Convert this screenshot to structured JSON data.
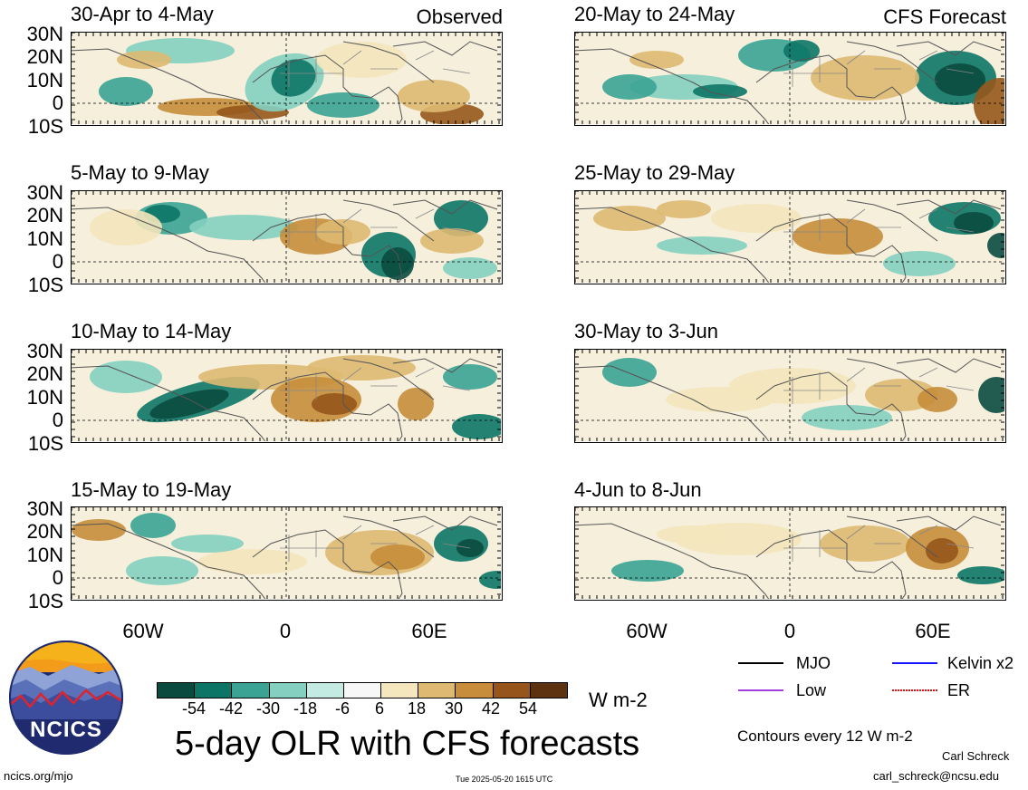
{
  "observed_label": "Observed",
  "forecast_label": "CFS Forecast",
  "latitude_labels": [
    "30N",
    "20N",
    "10N",
    "0",
    "10S"
  ],
  "longitude_labels": [
    "60W",
    "0",
    "60E"
  ],
  "panels_left": [
    {
      "title": "30-Apr to 4-May"
    },
    {
      "title": "5-May to 9-May"
    },
    {
      "title": "10-May to 14-May"
    },
    {
      "title": "15-May to 19-May"
    }
  ],
  "panels_right": [
    {
      "title": "20-May to 24-May"
    },
    {
      "title": "25-May to 29-May"
    },
    {
      "title": "30-May to 3-Jun"
    },
    {
      "title": "4-Jun to 8-Jun"
    }
  ],
  "colorbar": {
    "colors": [
      "#0b4a3f",
      "#0d7566",
      "#3ba393",
      "#84cfbf",
      "#c4ebe1",
      "#f7f7f7",
      "#f4e6bd",
      "#deb971",
      "#c78d3a",
      "#96561b",
      "#5c3210"
    ],
    "labels": [
      "-54",
      "-42",
      "-30",
      "-18",
      "-6",
      "6",
      "18",
      "30",
      "42",
      "54"
    ],
    "unit": "W m-2"
  },
  "legend": {
    "items": [
      {
        "label": "MJO",
        "color": "#000000"
      },
      {
        "label": "Kelvin x2",
        "color": "#1414ff"
      },
      {
        "label": "Low",
        "color": "#a040e0"
      },
      {
        "label": "ER",
        "color": "#e01010"
      }
    ],
    "contour_note": "Contours every 12 W m-2"
  },
  "main_title": "5-day OLR with CFS forecasts",
  "logo_text": "NCICS",
  "author": "Carl Schreck",
  "email": "carl_schreck@ncsu.edu",
  "url": "ncics.org/mjo",
  "timestamp": "Tue 2025-05-20 1615 UTC"
}
